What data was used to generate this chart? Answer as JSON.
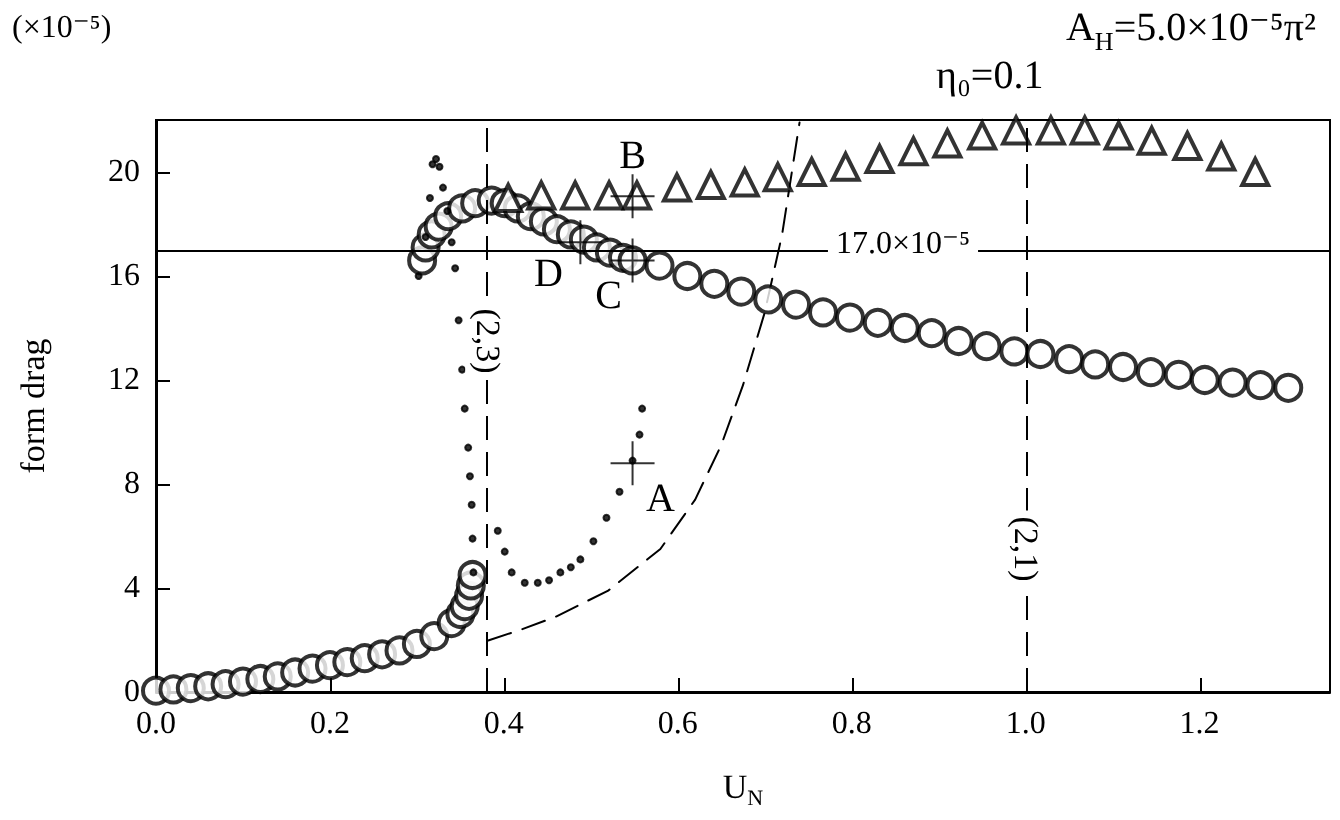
{
  "chart_data": {
    "type": "scatter",
    "xlabel": "U$_{N}$",
    "ylabel": "form drag",
    "annotations": [
      "(×10⁻⁵)",
      "A$_{H}$=5.0×10⁻⁵π²",
      "η₀=0.1",
      {
        "text": "A",
        "x": 0.548,
        "y": 8.8
      },
      {
        "text": "B",
        "x": 0.548,
        "y": 19.07
      },
      {
        "text": "C",
        "x": 0.548,
        "y": 16.6
      },
      {
        "text": "D",
        "x": 0.488,
        "y": 17.3
      },
      {
        "text": "(2,3)",
        "x": 0.382,
        "y": 13.5
      },
      {
        "text": "(2,1)",
        "x": 1.0,
        "y": 5.5
      }
    ],
    "xlim": [
      0,
      1.35
    ],
    "ylim": [
      0,
      22
    ],
    "xticks": [
      {
        "value": 0,
        "label": "0.0"
      },
      0.2,
      0.4,
      0.6,
      0.8,
      {
        "value": 1,
        "label": "1.0"
      },
      1.2
    ],
    "yticks": [
      0,
      4,
      8,
      12,
      16,
      20
    ],
    "grid": false,
    "ref_lines": [
      {
        "axis": "x",
        "value": 0.382,
        "line_style": "dashed"
      },
      {
        "axis": "x",
        "value": 1.0,
        "line_style": "dashed"
      },
      {
        "axis": "y",
        "value": 17.0,
        "label": "17.0×10⁻⁵",
        "line_style": "solid"
      }
    ],
    "series": [
      {
        "marker": "circle",
        "color": "#000000",
        "x": [
          0,
          0.02,
          0.04,
          0.06,
          0.08,
          0.1,
          0.12,
          0.14,
          0.16,
          0.18,
          0.2,
          0.22,
          0.24,
          0.26,
          0.28,
          0.3,
          0.32,
          0.34,
          0.35,
          0.355,
          0.36,
          0.362,
          0.364,
          0.306,
          0.31,
          0.317,
          0.325,
          0.336,
          0.352,
          0.367,
          0.386,
          0.401,
          0.416,
          0.431,
          0.446,
          0.461,
          0.477,
          0.492,
          0.507,
          0.522,
          0.537,
          0.548,
          0.579,
          0.611,
          0.642,
          0.673,
          0.704,
          0.736,
          0.767,
          0.798,
          0.83,
          0.861,
          0.892,
          0.923,
          0.955,
          0.987,
          1.017,
          1.05,
          1.08,
          1.112,
          1.144,
          1.176,
          1.206,
          1.238,
          1.27,
          1.302
        ],
        "values": [
          0.05,
          0.1,
          0.15,
          0.22,
          0.3,
          0.4,
          0.5,
          0.6,
          0.75,
          0.9,
          1.03,
          1.15,
          1.3,
          1.45,
          1.6,
          1.85,
          2.15,
          2.65,
          3.0,
          3.3,
          3.7,
          4.1,
          4.5,
          16.6,
          17.1,
          17.6,
          17.9,
          18.3,
          18.6,
          18.8,
          18.9,
          18.8,
          18.6,
          18.3,
          18.1,
          17.8,
          17.6,
          17.4,
          17.1,
          16.9,
          16.7,
          16.6,
          16.4,
          16.0,
          15.7,
          15.4,
          15.1,
          14.9,
          14.6,
          14.4,
          14.2,
          14.0,
          13.8,
          13.5,
          13.3,
          13.1,
          13.0,
          12.8,
          12.6,
          12.5,
          12.3,
          12.2,
          12.0,
          11.9,
          11.8,
          11.7
        ]
      },
      {
        "marker": "triangle",
        "color": "#000000",
        "x": [
          0.405,
          0.443,
          0.482,
          0.521,
          0.553,
          0.599,
          0.638,
          0.677,
          0.715,
          0.754,
          0.793,
          0.832,
          0.871,
          0.91,
          0.95,
          0.989,
          1.029,
          1.068,
          1.107,
          1.145,
          1.186,
          1.225,
          1.264
        ],
        "values": [
          19.0,
          19.1,
          19.1,
          19.1,
          19.1,
          19.4,
          19.5,
          19.6,
          19.8,
          20.0,
          20.2,
          20.5,
          20.8,
          21.1,
          21.4,
          21.6,
          21.6,
          21.6,
          21.4,
          21.2,
          21.0,
          20.6,
          20.0
        ]
      },
      {
        "marker": "star",
        "color": "#000000",
        "x": [
          0.302,
          0.31,
          0.315,
          0.318,
          0.322,
          0.326,
          0.33,
          0.335,
          0.34,
          0.344,
          0.348,
          0.352,
          0.355,
          0.359,
          0.361,
          0.363,
          0.364,
          0.365,
          0.393,
          0.401,
          0.409,
          0.424,
          0.439,
          0.452,
          0.465,
          0.477,
          0.488,
          0.503,
          0.518,
          0.533,
          0.548,
          0.556,
          0.559
        ],
        "values": [
          16.0,
          17.5,
          19.0,
          20.3,
          20.5,
          20.2,
          19.4,
          18.5,
          17.3,
          16.3,
          14.3,
          12.4,
          10.9,
          9.4,
          8.3,
          7.2,
          5.9,
          4.6,
          6.2,
          5.4,
          4.6,
          4.2,
          4.2,
          4.3,
          4.6,
          4.8,
          5.1,
          5.8,
          6.7,
          7.7,
          8.9,
          9.9,
          10.9
        ]
      },
      {
        "type": "line",
        "marker": "none",
        "line_style": "dashed",
        "color": "#000000",
        "x": [
          0.382,
          0.42,
          0.46,
          0.52,
          0.58,
          0.62,
          0.65,
          0.675,
          0.7,
          0.72,
          0.74
        ],
        "values": [
          1.98,
          2.4,
          2.9,
          3.9,
          5.5,
          7.4,
          9.5,
          11.8,
          14.6,
          17.6,
          21.9
        ]
      }
    ]
  }
}
